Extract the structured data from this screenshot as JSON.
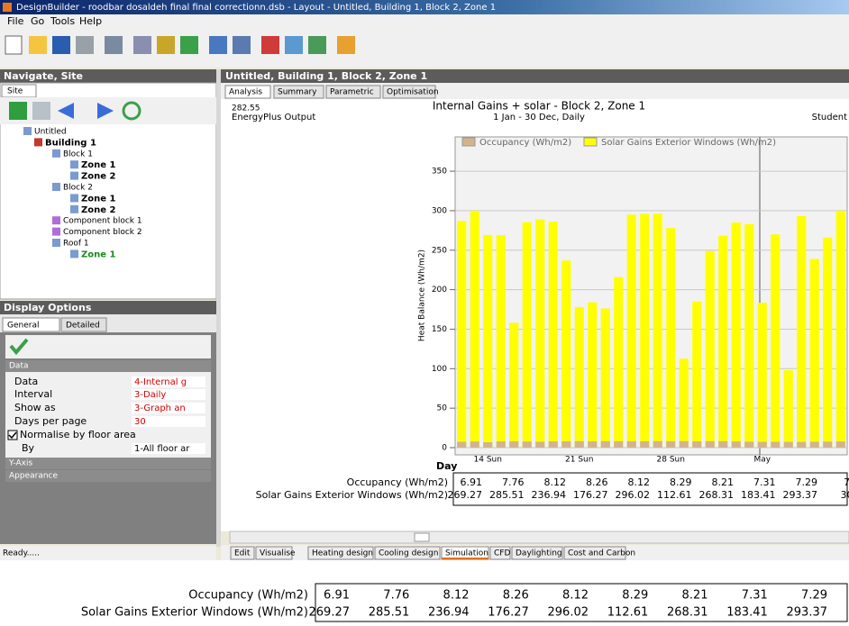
{
  "window": {
    "title": "DesignBuilder - roodbar dosaldeh final final correctionn.dsb - Layout - Untitled, Building 1, Block 2, Zone 1",
    "menu": [
      "File",
      "Go",
      "Tools",
      "Help"
    ],
    "status": "Ready....."
  },
  "navigate": {
    "header": "Navigate, Site",
    "tab": "Site",
    "tree": [
      "Untitled",
      "Building 1",
      "Block 1",
      "Zone 1",
      "Zone 2",
      "Block 2",
      "Zone 1",
      "Zone 2",
      "Component block 1",
      "Component block 2",
      "Roof 1",
      "Zone 1"
    ]
  },
  "display_options": {
    "header": "Display Options",
    "tabs": [
      "General",
      "Detailed"
    ],
    "sections": [
      "Data",
      "Y-Axis",
      "Appearance"
    ],
    "rows": [
      {
        "label": "Data",
        "value": "4-Internal g"
      },
      {
        "label": "Interval",
        "value": "3-Daily"
      },
      {
        "label": "Show as",
        "value": "3-Graph an"
      },
      {
        "label": "Days per page",
        "value": 30
      }
    ],
    "checkbox": "Normalise by floor area",
    "by": {
      "label": "By",
      "value": "1-All floor ar"
    }
  },
  "content": {
    "header": "Untitled, Building 1, Block 2, Zone 1",
    "tabs": [
      "Analysis",
      "Summary",
      "Parametric",
      "Optimisation"
    ],
    "bottom_tabs": [
      "Edit",
      "Visualise",
      "Heating design",
      "Cooling design",
      "Simulation",
      "CFD",
      "Daylighting",
      "Cost and Carbon"
    ],
    "reading": 282.55,
    "source": "EnergyPlus Output",
    "user": "Student"
  },
  "chart_data": {
    "type": "bar",
    "title": "Internal Gains + solar - Block 2, Zone 1",
    "subtitle": "1 Jan - 30 Dec, Daily",
    "x_label": "Day",
    "y_label": "Heat Balance (Wh/m2)",
    "categories": [
      null,
      null,
      "14 Sun",
      null,
      null,
      null,
      null,
      null,
      null,
      "21 Sun",
      null,
      null,
      null,
      null,
      null,
      null,
      "28 Sun",
      null,
      null,
      null,
      null,
      null,
      null,
      "May",
      null,
      null,
      null,
      null,
      null,
      null
    ],
    "series": [
      {
        "name": "Occupancy (Wh/m2)",
        "color": "#d2b48c",
        "values": [
          7.4,
          7.8,
          6.91,
          7.9,
          8.1,
          7.76,
          7.5,
          8.0,
          8.12,
          8.2,
          8.0,
          8.26,
          8.1,
          8.2,
          8.12,
          8.3,
          8.2,
          8.29,
          8.1,
          8.2,
          8.21,
          7.9,
          7.5,
          7.31,
          7.4,
          7.3,
          7.29,
          7.5,
          7.6,
          7.8
        ]
      },
      {
        "name": "Solar Gains Exterior Windows (Wh/m2)",
        "color": "#ffff00",
        "values": [
          287,
          300,
          269.27,
          269,
          158,
          285.51,
          289,
          286,
          236.94,
          178,
          184,
          176.27,
          216,
          295,
          296.02,
          296,
          278,
          112.61,
          185,
          249,
          268.31,
          285,
          283,
          183.41,
          270,
          98,
          293.37,
          239,
          266,
          300
        ]
      }
    ],
    "ylim": [
      0,
      390
    ],
    "yticks": [
      0,
      50,
      100,
      150,
      200,
      250,
      300,
      350
    ],
    "grid": true
  }
}
